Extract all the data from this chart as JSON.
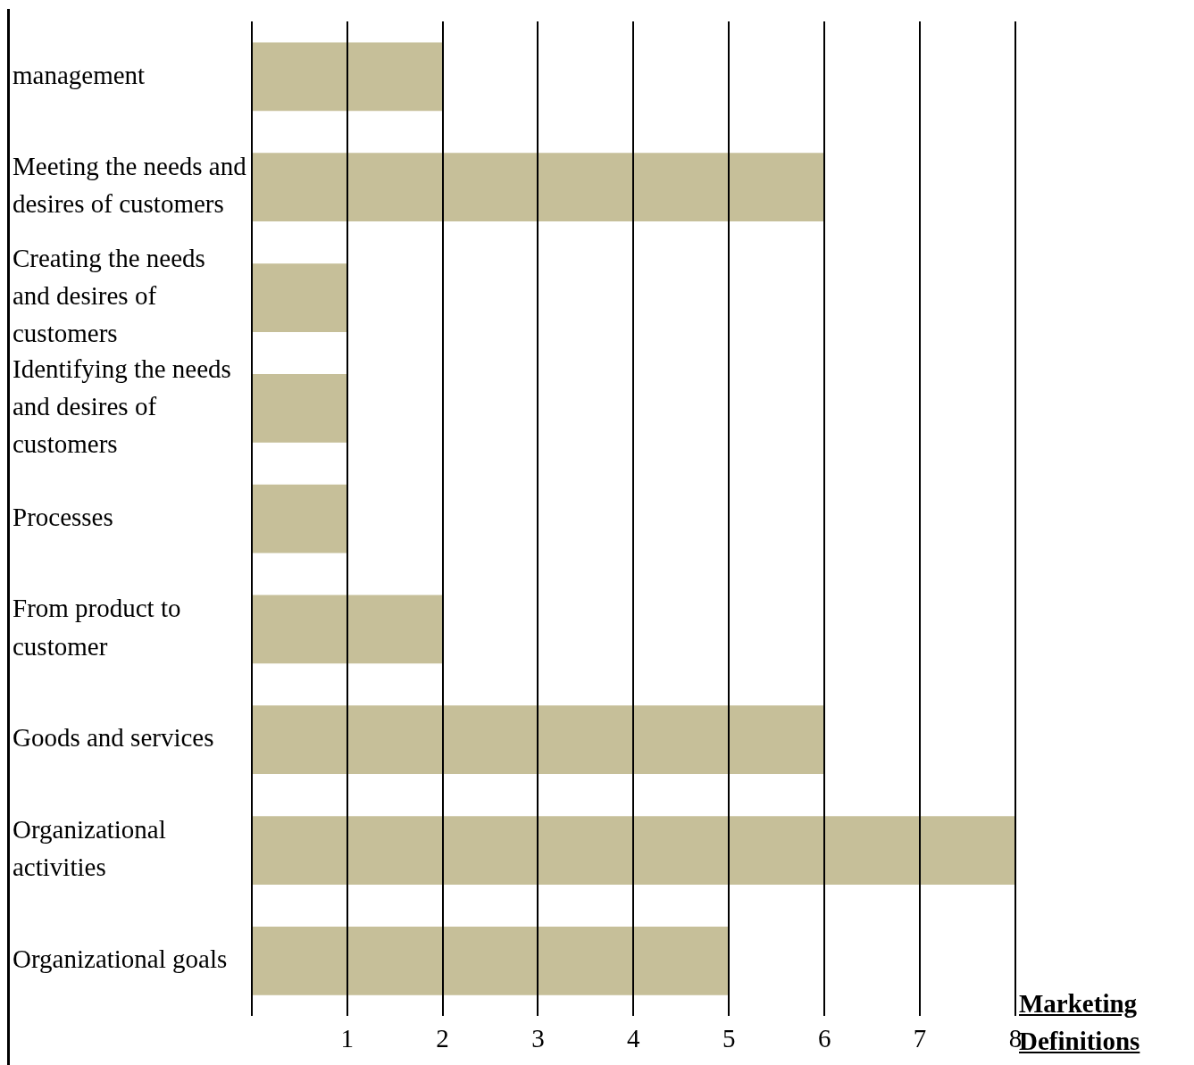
{
  "chart_data": {
    "type": "bar",
    "orientation": "horizontal",
    "title": "Marketing Definitions",
    "categories": [
      "management",
      "Meeting the needs and desires of customers",
      "Creating the needs and desires of customers",
      "Identifying the needs and desires of customers",
      "Processes",
      "From product to customer",
      "Goods and services",
      "Organizational activities",
      "Organizational goals"
    ],
    "values": [
      2,
      6,
      1,
      1,
      1,
      2,
      6,
      8,
      5
    ],
    "color": "#c6bf99",
    "xlim": [
      0,
      8
    ],
    "xticks": [
      {
        "value": 0,
        "label": null
      },
      1,
      2,
      3,
      4,
      5,
      6,
      7,
      8
    ],
    "grid": "x",
    "legend": false
  }
}
